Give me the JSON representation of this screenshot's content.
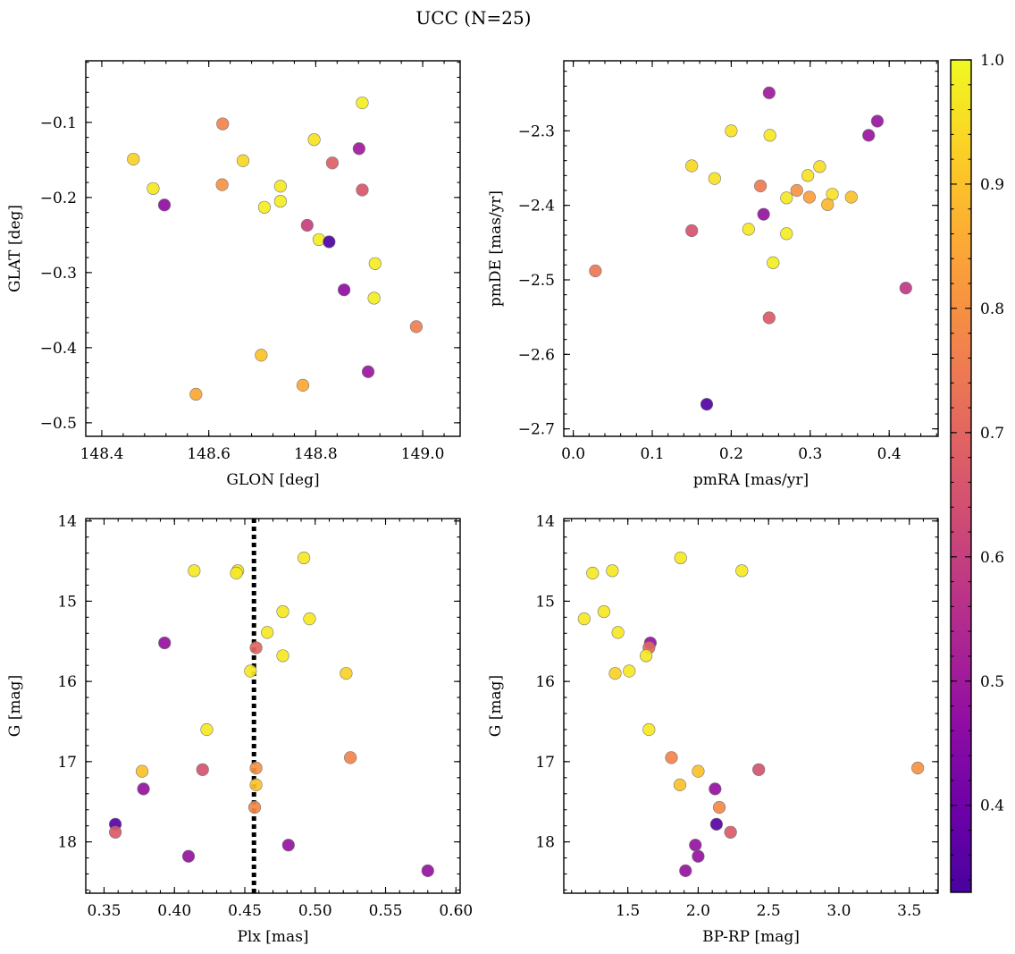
{
  "title": "UCC (N=25)",
  "colorbar": {
    "cmap": "plasma",
    "min": 0.33,
    "max": 1.0,
    "ticks": [
      0.4,
      0.5,
      0.6,
      0.7,
      0.8,
      0.9,
      1.0
    ],
    "tick_labels": [
      "0.4",
      "0.5",
      "0.6",
      "0.7",
      "0.8",
      "0.9",
      "1.0"
    ]
  },
  "chart_data": [
    {
      "id": "glon-glat",
      "type": "scatter",
      "xlabel": "GLON [deg]",
      "ylabel": "GLAT [deg]",
      "xlim": [
        148.37,
        149.07
      ],
      "ylim": [
        -0.518,
        -0.018
      ],
      "y_inverted": false,
      "xticks": [
        148.4,
        148.6,
        148.8,
        149.0
      ],
      "xtick_labels": [
        "148.4",
        "148.6",
        "148.8",
        "149.0"
      ],
      "yticks": [
        -0.5,
        -0.4,
        -0.3,
        -0.2,
        -0.1
      ],
      "ytick_labels": [
        "−0.5",
        "−0.4",
        "−0.3",
        "−0.2",
        "−0.1"
      ],
      "points": [
        {
          "x": 148.887,
          "y": -0.074,
          "p": 0.98
        },
        {
          "x": 148.626,
          "y": -0.102,
          "p": 0.77
        },
        {
          "x": 148.797,
          "y": -0.123,
          "p": 0.96
        },
        {
          "x": 148.881,
          "y": -0.135,
          "p": 0.5
        },
        {
          "x": 148.459,
          "y": -0.149,
          "p": 0.93
        },
        {
          "x": 148.664,
          "y": -0.151,
          "p": 0.94
        },
        {
          "x": 148.831,
          "y": -0.154,
          "p": 0.68
        },
        {
          "x": 148.625,
          "y": -0.183,
          "p": 0.8
        },
        {
          "x": 148.734,
          "y": -0.185,
          "p": 0.97
        },
        {
          "x": 148.496,
          "y": -0.188,
          "p": 0.97
        },
        {
          "x": 148.887,
          "y": -0.19,
          "p": 0.66
        },
        {
          "x": 148.734,
          "y": -0.205,
          "p": 0.98
        },
        {
          "x": 148.517,
          "y": -0.21,
          "p": 0.47
        },
        {
          "x": 148.704,
          "y": -0.213,
          "p": 0.98
        },
        {
          "x": 148.784,
          "y": -0.237,
          "p": 0.6
        },
        {
          "x": 148.806,
          "y": -0.256,
          "p": 0.98
        },
        {
          "x": 148.825,
          "y": -0.259,
          "p": 0.34
        },
        {
          "x": 148.911,
          "y": -0.288,
          "p": 0.98
        },
        {
          "x": 148.853,
          "y": -0.323,
          "p": 0.47
        },
        {
          "x": 148.909,
          "y": -0.334,
          "p": 0.98
        },
        {
          "x": 148.988,
          "y": -0.372,
          "p": 0.76
        },
        {
          "x": 148.698,
          "y": -0.41,
          "p": 0.9
        },
        {
          "x": 148.898,
          "y": -0.432,
          "p": 0.49
        },
        {
          "x": 148.776,
          "y": -0.45,
          "p": 0.85
        },
        {
          "x": 148.576,
          "y": -0.462,
          "p": 0.85
        }
      ]
    },
    {
      "id": "pmra-pmde",
      "type": "scatter",
      "xlabel": "pmRA [mas/yr]",
      "ylabel": "pmDE [mas/yr]",
      "xlim": [
        -0.012,
        0.462
      ],
      "ylim": [
        -2.71,
        -2.206
      ],
      "y_inverted": false,
      "xticks": [
        0.0,
        0.1,
        0.2,
        0.3,
        0.4
      ],
      "xtick_labels": [
        "0.0",
        "0.1",
        "0.2",
        "0.3",
        "0.4"
      ],
      "yticks": [
        -2.7,
        -2.6,
        -2.5,
        -2.4,
        -2.3
      ],
      "ytick_labels": [
        "−2.7",
        "−2.6",
        "−2.5",
        "−2.4",
        "−2.3"
      ],
      "points": [
        {
          "x": 0.248,
          "y": -2.249,
          "p": 0.5
        },
        {
          "x": 0.385,
          "y": -2.287,
          "p": 0.49
        },
        {
          "x": 0.2,
          "y": -2.3,
          "p": 0.96
        },
        {
          "x": 0.374,
          "y": -2.306,
          "p": 0.49
        },
        {
          "x": 0.249,
          "y": -2.306,
          "p": 0.97
        },
        {
          "x": 0.15,
          "y": -2.347,
          "p": 0.94
        },
        {
          "x": 0.312,
          "y": -2.348,
          "p": 0.95
        },
        {
          "x": 0.297,
          "y": -2.36,
          "p": 0.96
        },
        {
          "x": 0.179,
          "y": -2.364,
          "p": 0.96
        },
        {
          "x": 0.237,
          "y": -2.374,
          "p": 0.75
        },
        {
          "x": 0.283,
          "y": -2.38,
          "p": 0.8
        },
        {
          "x": 0.328,
          "y": -2.385,
          "p": 0.96
        },
        {
          "x": 0.27,
          "y": -2.39,
          "p": 0.97
        },
        {
          "x": 0.299,
          "y": -2.389,
          "p": 0.83
        },
        {
          "x": 0.352,
          "y": -2.389,
          "p": 0.9
        },
        {
          "x": 0.322,
          "y": -2.399,
          "p": 0.88
        },
        {
          "x": 0.241,
          "y": -2.412,
          "p": 0.48
        },
        {
          "x": 0.222,
          "y": -2.432,
          "p": 0.97
        },
        {
          "x": 0.15,
          "y": -2.434,
          "p": 0.65
        },
        {
          "x": 0.27,
          "y": -2.438,
          "p": 0.98
        },
        {
          "x": 0.253,
          "y": -2.477,
          "p": 0.98
        },
        {
          "x": 0.028,
          "y": -2.488,
          "p": 0.74
        },
        {
          "x": 0.421,
          "y": -2.511,
          "p": 0.58
        },
        {
          "x": 0.248,
          "y": -2.551,
          "p": 0.67
        },
        {
          "x": 0.169,
          "y": -2.667,
          "p": 0.35
        }
      ]
    },
    {
      "id": "plx-g",
      "type": "scatter",
      "xlabel": "Plx [mas]",
      "ylabel": "G [mag]",
      "xlim": [
        0.337,
        0.603
      ],
      "ylim": [
        18.64,
        13.97
      ],
      "y_inverted": true,
      "xticks": [
        0.35,
        0.4,
        0.45,
        0.5,
        0.55,
        0.6
      ],
      "xtick_labels": [
        "0.35",
        "0.40",
        "0.45",
        "0.50",
        "0.55",
        "0.60"
      ],
      "yticks": [
        14,
        15,
        16,
        17,
        18
      ],
      "ytick_labels": [
        "14",
        "15",
        "16",
        "17",
        "18"
      ],
      "vline": {
        "x": 0.4565,
        "style": "dotted",
        "color": "#000000"
      },
      "points": [
        {
          "x": 0.492,
          "y": 14.46,
          "p": 0.97
        },
        {
          "x": 0.414,
          "y": 14.62,
          "p": 0.97
        },
        {
          "x": 0.445,
          "y": 14.62,
          "p": 0.97
        },
        {
          "x": 0.444,
          "y": 14.65,
          "p": 0.97
        },
        {
          "x": 0.477,
          "y": 15.13,
          "p": 0.97
        },
        {
          "x": 0.496,
          "y": 15.22,
          "p": 0.97
        },
        {
          "x": 0.466,
          "y": 15.39,
          "p": 0.97
        },
        {
          "x": 0.393,
          "y": 15.52,
          "p": 0.48
        },
        {
          "x": 0.458,
          "y": 15.58,
          "p": 0.7
        },
        {
          "x": 0.477,
          "y": 15.68,
          "p": 0.97
        },
        {
          "x": 0.454,
          "y": 15.87,
          "p": 0.97
        },
        {
          "x": 0.522,
          "y": 15.9,
          "p": 0.93
        },
        {
          "x": 0.423,
          "y": 16.6,
          "p": 0.97
        },
        {
          "x": 0.525,
          "y": 16.95,
          "p": 0.77
        },
        {
          "x": 0.458,
          "y": 17.08,
          "p": 0.8
        },
        {
          "x": 0.42,
          "y": 17.1,
          "p": 0.65
        },
        {
          "x": 0.377,
          "y": 17.12,
          "p": 0.9
        },
        {
          "x": 0.458,
          "y": 17.29,
          "p": 0.9
        },
        {
          "x": 0.378,
          "y": 17.34,
          "p": 0.48
        },
        {
          "x": 0.457,
          "y": 17.57,
          "p": 0.78
        },
        {
          "x": 0.358,
          "y": 17.78,
          "p": 0.36
        },
        {
          "x": 0.358,
          "y": 17.88,
          "p": 0.67
        },
        {
          "x": 0.481,
          "y": 18.04,
          "p": 0.48
        },
        {
          "x": 0.41,
          "y": 18.18,
          "p": 0.48
        },
        {
          "x": 0.58,
          "y": 18.36,
          "p": 0.48
        }
      ]
    },
    {
      "id": "bprp-g",
      "type": "scatter",
      "xlabel": "BP-RP [mag]",
      "ylabel": "G [mag]",
      "xlim": [
        1.045,
        3.705
      ],
      "ylim": [
        18.64,
        13.97
      ],
      "y_inverted": true,
      "xticks": [
        1.5,
        2.0,
        2.5,
        3.0,
        3.5
      ],
      "xtick_labels": [
        "1.5",
        "2.0",
        "2.5",
        "3.0",
        "3.5"
      ],
      "yticks": [
        14,
        15,
        16,
        17,
        18
      ],
      "ytick_labels": [
        "14",
        "15",
        "16",
        "17",
        "18"
      ],
      "points": [
        {
          "x": 1.875,
          "y": 14.46,
          "p": 0.97
        },
        {
          "x": 2.31,
          "y": 14.62,
          "p": 0.97
        },
        {
          "x": 1.39,
          "y": 14.62,
          "p": 0.97
        },
        {
          "x": 1.25,
          "y": 14.65,
          "p": 0.97
        },
        {
          "x": 1.33,
          "y": 15.13,
          "p": 0.97
        },
        {
          "x": 1.19,
          "y": 15.22,
          "p": 0.97
        },
        {
          "x": 1.43,
          "y": 15.39,
          "p": 0.97
        },
        {
          "x": 1.66,
          "y": 15.52,
          "p": 0.48
        },
        {
          "x": 1.65,
          "y": 15.58,
          "p": 0.7
        },
        {
          "x": 1.63,
          "y": 15.68,
          "p": 0.97
        },
        {
          "x": 1.51,
          "y": 15.87,
          "p": 0.97
        },
        {
          "x": 1.41,
          "y": 15.9,
          "p": 0.93
        },
        {
          "x": 1.65,
          "y": 16.6,
          "p": 0.97
        },
        {
          "x": 1.81,
          "y": 16.95,
          "p": 0.77
        },
        {
          "x": 3.56,
          "y": 17.08,
          "p": 0.8
        },
        {
          "x": 2.43,
          "y": 17.1,
          "p": 0.65
        },
        {
          "x": 2.0,
          "y": 17.12,
          "p": 0.9
        },
        {
          "x": 1.87,
          "y": 17.29,
          "p": 0.9
        },
        {
          "x": 2.12,
          "y": 17.34,
          "p": 0.48
        },
        {
          "x": 2.15,
          "y": 17.57,
          "p": 0.78
        },
        {
          "x": 2.13,
          "y": 17.78,
          "p": 0.36
        },
        {
          "x": 2.23,
          "y": 17.88,
          "p": 0.67
        },
        {
          "x": 1.98,
          "y": 18.04,
          "p": 0.48
        },
        {
          "x": 2.0,
          "y": 18.18,
          "p": 0.48
        },
        {
          "x": 1.91,
          "y": 18.36,
          "p": 0.48
        }
      ]
    }
  ]
}
